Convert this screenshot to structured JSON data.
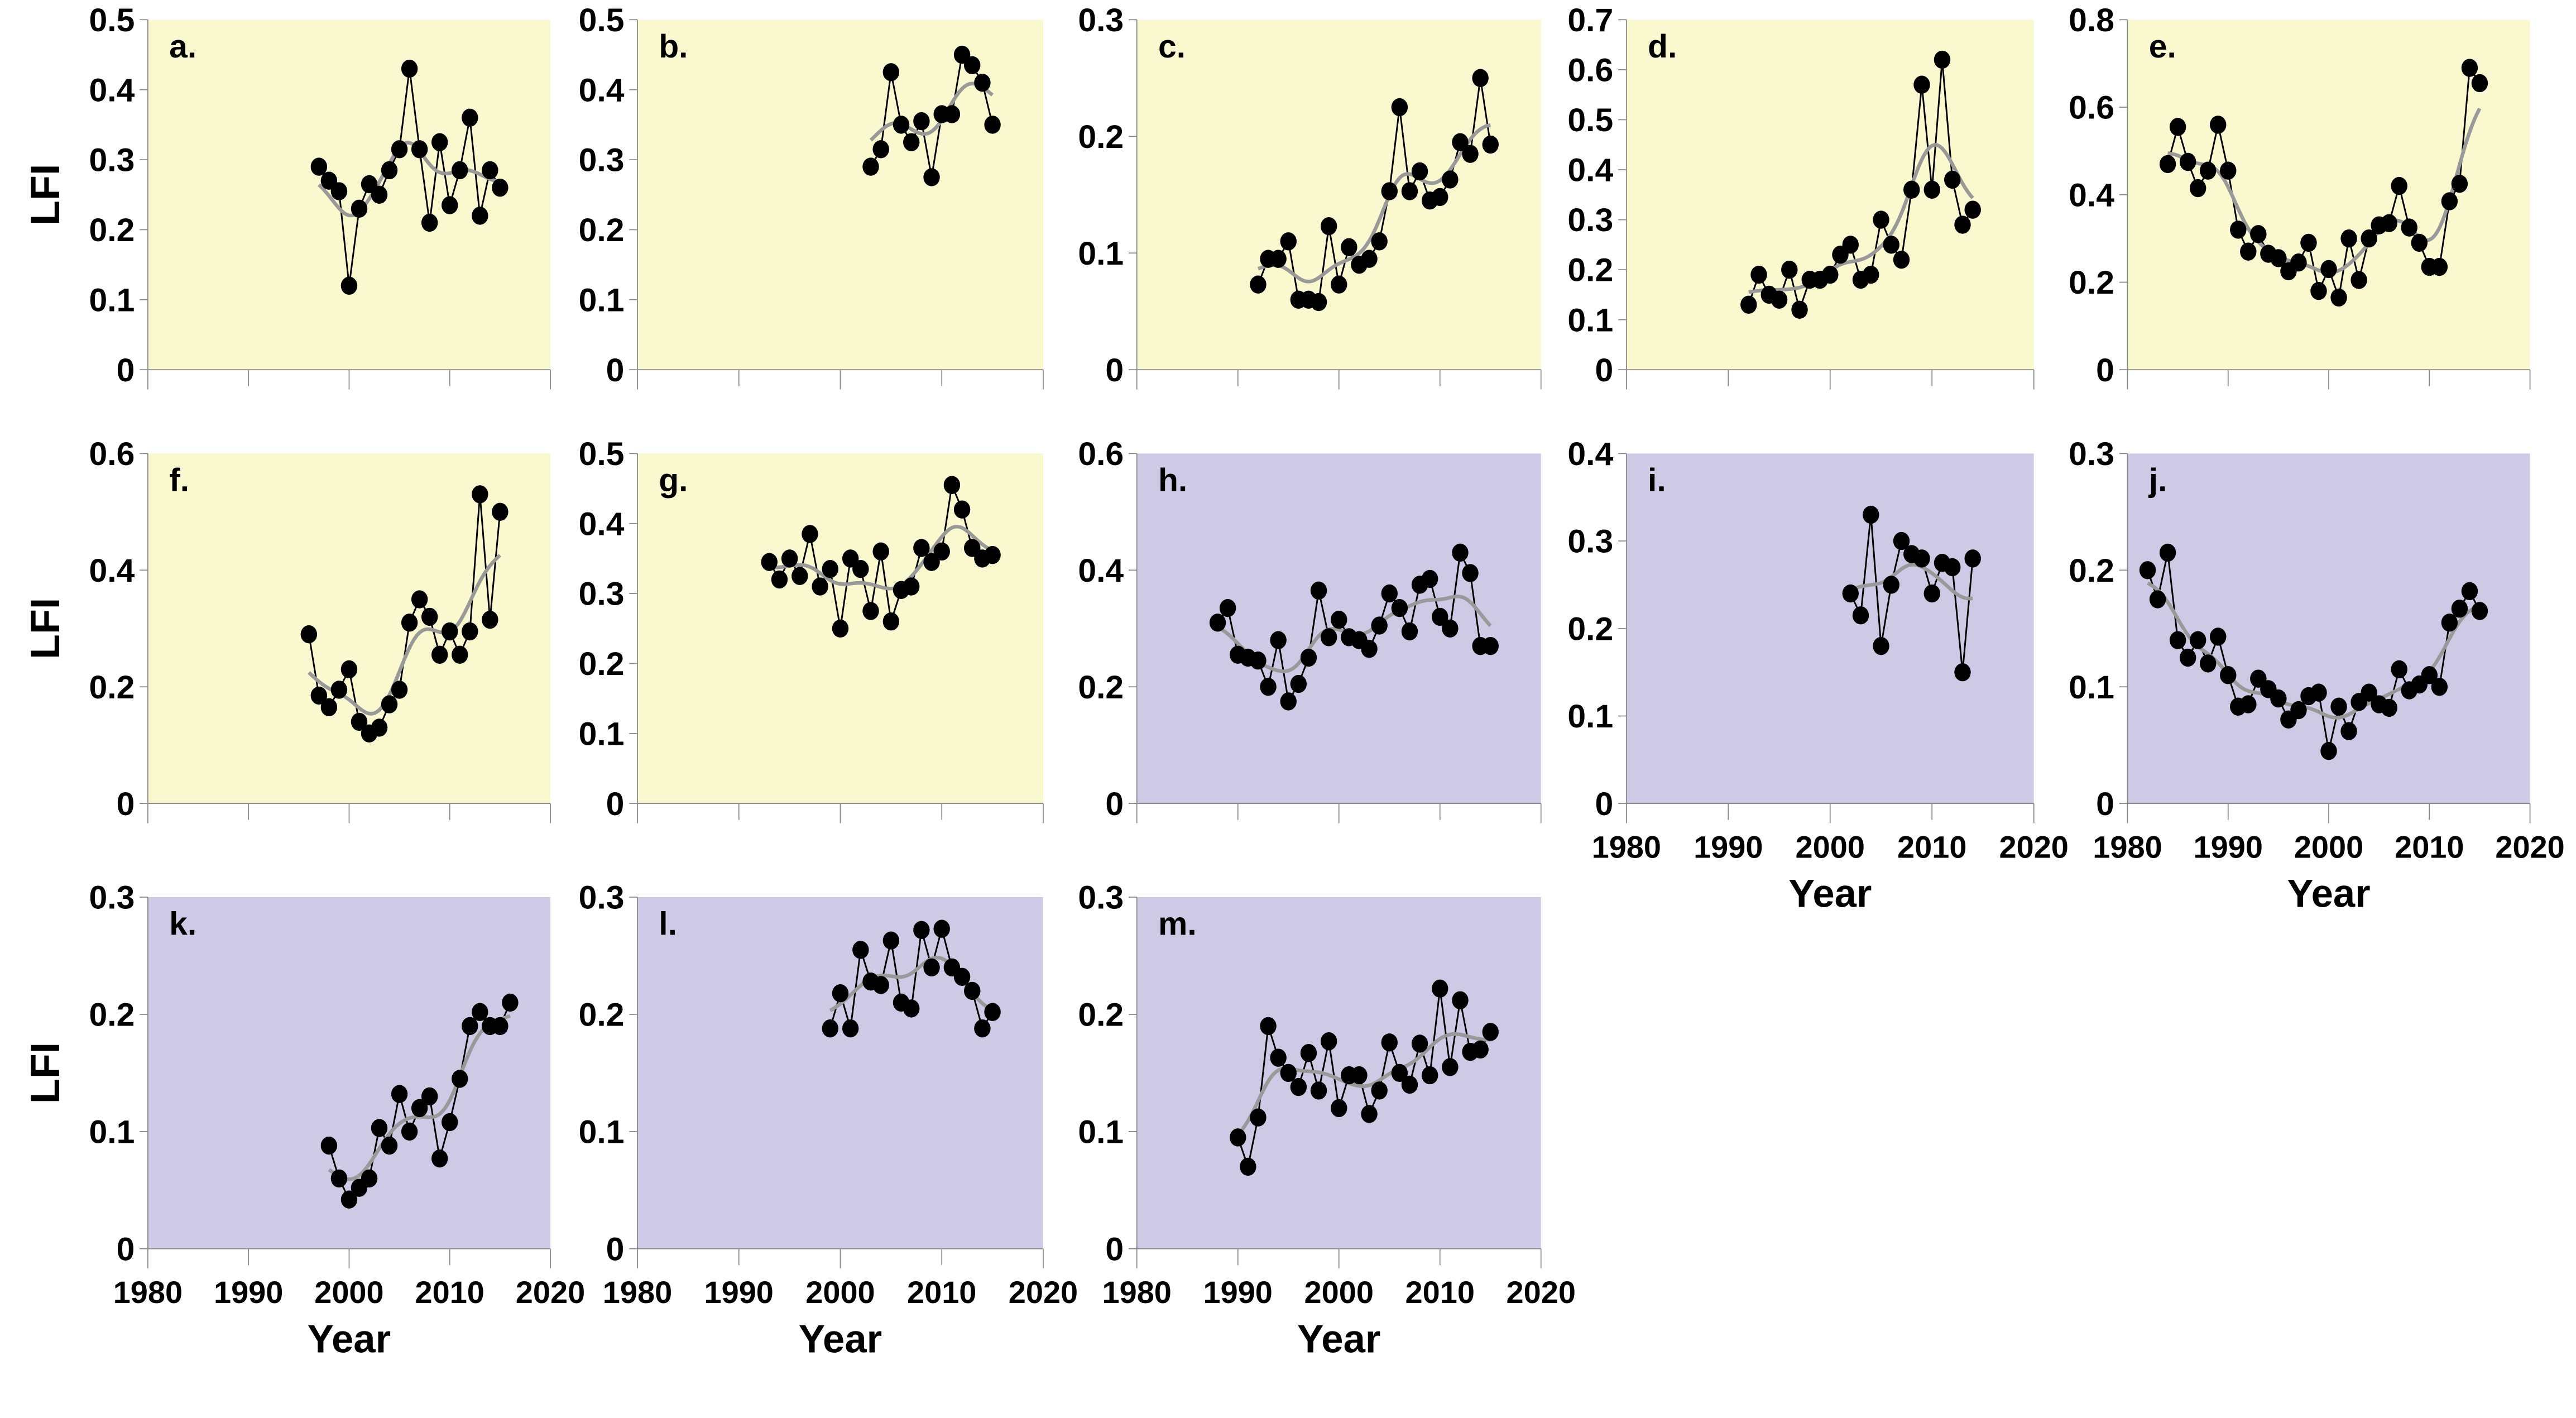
{
  "chart_data": {
    "type": "line",
    "ylabel": "LFI",
    "xlabel": "Year",
    "x_ticks": [
      "1980",
      "1990",
      "2000",
      "2010",
      "2020"
    ],
    "xlim": [
      1980,
      2020
    ],
    "colors": {
      "yellow_bg": "#f9f8cf",
      "purple_bg": "#cecae6",
      "points": "#000000",
      "trend": "#999999"
    },
    "panels": [
      {
        "id": "a",
        "label": "a.",
        "bg": "yellow",
        "ylim": [
          0,
          0.5
        ],
        "y_ticks": [
          "0",
          "0.1",
          "0.2",
          "0.3",
          "0.4",
          "0.5"
        ],
        "start_year": 1997,
        "values": [
          0.29,
          0.27,
          0.255,
          0.12,
          0.23,
          0.265,
          0.25,
          0.285,
          0.315,
          0.43,
          0.315,
          0.21,
          0.325,
          0.235,
          0.285,
          0.36,
          0.22,
          0.285,
          0.26
        ]
      },
      {
        "id": "b",
        "label": "b.",
        "bg": "yellow",
        "ylim": [
          0,
          0.5
        ],
        "y_ticks": [
          "0",
          "0.1",
          "0.2",
          "0.3",
          "0.4",
          "0.5"
        ],
        "start_year": 2003,
        "values": [
          0.29,
          0.315,
          0.425,
          0.35,
          0.325,
          0.355,
          0.275,
          0.365,
          0.365,
          0.45,
          0.435,
          0.41,
          0.35
        ]
      },
      {
        "id": "c",
        "label": "c.",
        "bg": "yellow",
        "ylim": [
          0,
          0.3
        ],
        "y_ticks": [
          "0",
          "0.1",
          "0.2",
          "0.3"
        ],
        "start_year": 1992,
        "values": [
          0.073,
          0.095,
          0.095,
          0.11,
          0.06,
          0.06,
          0.058,
          0.123,
          0.073,
          0.105,
          0.09,
          0.095,
          0.11,
          0.153,
          0.225,
          0.153,
          0.17,
          0.145,
          0.148,
          0.163,
          0.195,
          0.185,
          0.25,
          0.193
        ]
      },
      {
        "id": "d",
        "label": "d.",
        "bg": "yellow",
        "ylim": [
          0,
          0.7
        ],
        "y_ticks": [
          "0",
          "0.1",
          "0.2",
          "0.3",
          "0.4",
          "0.5",
          "0.6",
          "0.7"
        ],
        "start_year": 1992,
        "values": [
          0.13,
          0.19,
          0.15,
          0.14,
          0.2,
          0.12,
          0.18,
          0.18,
          0.19,
          0.23,
          0.25,
          0.18,
          0.19,
          0.3,
          0.25,
          0.22,
          0.36,
          0.57,
          0.36,
          0.62,
          0.38,
          0.29,
          0.32
        ]
      },
      {
        "id": "e",
        "label": "e.",
        "bg": "yellow",
        "ylim": [
          0,
          0.8
        ],
        "y_ticks": [
          "0",
          "0.2",
          "0.4",
          "0.6",
          "0.8"
        ],
        "start_year": 1984,
        "values": [
          0.47,
          0.555,
          0.475,
          0.415,
          0.455,
          0.56,
          0.455,
          0.32,
          0.27,
          0.31,
          0.265,
          0.255,
          0.225,
          0.245,
          0.29,
          0.18,
          0.23,
          0.165,
          0.3,
          0.205,
          0.3,
          0.33,
          0.335,
          0.42,
          0.325,
          0.29,
          0.235,
          0.235,
          0.385,
          0.425,
          0.69,
          0.655
        ]
      },
      {
        "id": "f",
        "label": "f.",
        "bg": "yellow",
        "ylim": [
          0,
          0.6
        ],
        "y_ticks": [
          "0",
          "0.2",
          "0.4",
          "0.6"
        ],
        "start_year": 1996,
        "values": [
          0.29,
          0.185,
          0.165,
          0.195,
          0.23,
          0.14,
          0.12,
          0.13,
          0.17,
          0.195,
          0.31,
          0.35,
          0.32,
          0.255,
          0.295,
          0.255,
          0.295,
          0.53,
          0.315,
          0.5
        ]
      },
      {
        "id": "g",
        "label": "g.",
        "bg": "yellow",
        "ylim": [
          0,
          0.5
        ],
        "y_ticks": [
          "0",
          "0.1",
          "0.2",
          "0.3",
          "0.4",
          "0.5"
        ],
        "start_year": 1993,
        "values": [
          0.345,
          0.32,
          0.35,
          0.325,
          0.385,
          0.31,
          0.335,
          0.25,
          0.35,
          0.335,
          0.275,
          0.36,
          0.26,
          0.305,
          0.31,
          0.365,
          0.345,
          0.36,
          0.455,
          0.42,
          0.365,
          0.35,
          0.355
        ]
      },
      {
        "id": "h",
        "label": "h.",
        "bg": "purple",
        "ylim": [
          0,
          0.6
        ],
        "y_ticks": [
          "0",
          "0.2",
          "0.4",
          "0.6"
        ],
        "start_year": 1988,
        "values": [
          0.31,
          0.335,
          0.255,
          0.25,
          0.245,
          0.2,
          0.28,
          0.175,
          0.205,
          0.25,
          0.365,
          0.285,
          0.315,
          0.285,
          0.28,
          0.265,
          0.305,
          0.36,
          0.335,
          0.295,
          0.375,
          0.385,
          0.32,
          0.3,
          0.43,
          0.395,
          0.27,
          0.27
        ]
      },
      {
        "id": "i",
        "label": "i.",
        "bg": "purple",
        "ylim": [
          0,
          0.4
        ],
        "y_ticks": [
          "0",
          "0.1",
          "0.2",
          "0.3",
          "0.4"
        ],
        "start_year": 2002,
        "values": [
          0.24,
          0.215,
          0.33,
          0.18,
          0.25,
          0.3,
          0.285,
          0.28,
          0.24,
          0.275,
          0.27,
          0.15,
          0.28
        ]
      },
      {
        "id": "j",
        "label": "j.",
        "bg": "purple",
        "ylim": [
          0,
          0.3
        ],
        "y_ticks": [
          "0",
          "0.1",
          "0.2",
          "0.3"
        ],
        "start_year": 1982,
        "values": [
          0.2,
          0.175,
          0.215,
          0.14,
          0.125,
          0.14,
          0.12,
          0.143,
          0.11,
          0.083,
          0.085,
          0.107,
          0.098,
          0.09,
          0.072,
          0.08,
          0.092,
          0.095,
          0.045,
          0.083,
          0.062,
          0.087,
          0.095,
          0.085,
          0.082,
          0.115,
          0.097,
          0.102,
          0.11,
          0.1,
          0.155,
          0.167,
          0.182,
          0.165
        ]
      },
      {
        "id": "k",
        "label": "k.",
        "bg": "purple",
        "ylim": [
          0,
          0.3
        ],
        "y_ticks": [
          "0",
          "0.1",
          "0.2",
          "0.3"
        ],
        "start_year": 1998,
        "values": [
          0.088,
          0.06,
          0.042,
          0.052,
          0.06,
          0.103,
          0.088,
          0.132,
          0.1,
          0.12,
          0.13,
          0.077,
          0.108,
          0.145,
          0.19,
          0.202,
          0.19,
          0.19,
          0.21
        ]
      },
      {
        "id": "l",
        "label": "l.",
        "bg": "purple",
        "ylim": [
          0,
          0.3
        ],
        "y_ticks": [
          "0",
          "0.1",
          "0.2",
          "0.3"
        ],
        "start_year": 1999,
        "values": [
          0.188,
          0.218,
          0.188,
          0.255,
          0.228,
          0.225,
          0.263,
          0.21,
          0.205,
          0.272,
          0.24,
          0.273,
          0.24,
          0.232,
          0.22,
          0.188,
          0.202
        ]
      },
      {
        "id": "m",
        "label": "m.",
        "bg": "purple",
        "ylim": [
          0,
          0.3
        ],
        "y_ticks": [
          "0",
          "0.1",
          "0.2",
          "0.3"
        ],
        "start_year": 1990,
        "values": [
          0.095,
          0.07,
          0.112,
          0.19,
          0.163,
          0.15,
          0.138,
          0.167,
          0.135,
          0.177,
          0.12,
          0.148,
          0.148,
          0.115,
          0.135,
          0.176,
          0.15,
          0.14,
          0.175,
          0.148,
          0.222,
          0.155,
          0.212,
          0.168,
          0.17,
          0.185
        ]
      }
    ]
  }
}
